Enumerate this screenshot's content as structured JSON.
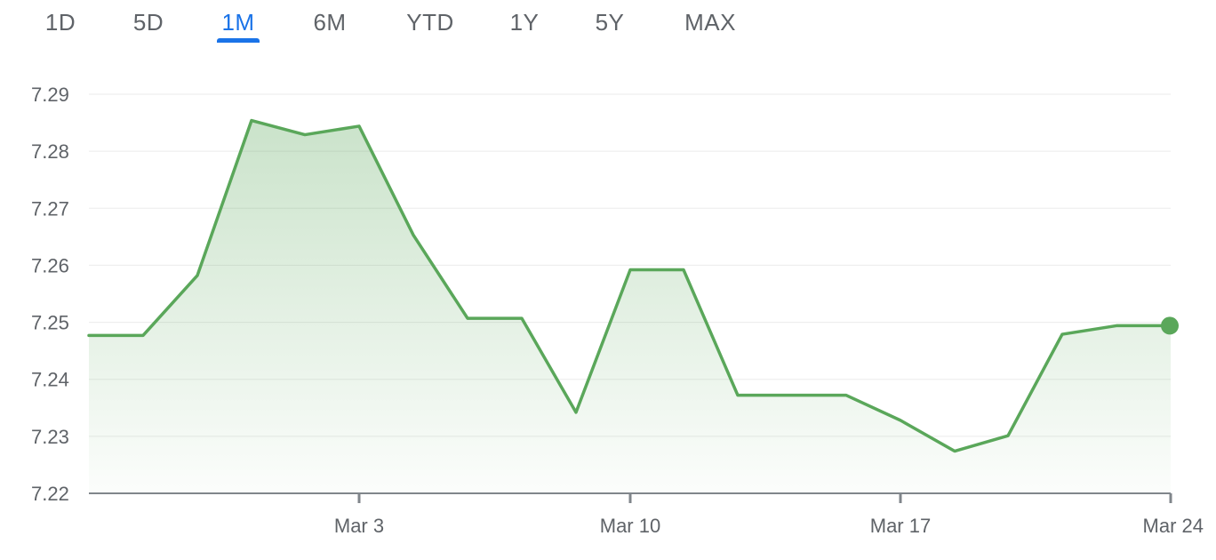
{
  "range_tabs": {
    "items": [
      "1D",
      "5D",
      "1M",
      "6M",
      "YTD",
      "1Y",
      "5Y",
      "MAX"
    ],
    "selected": "1M"
  },
  "colors": {
    "line": "#5aa75a",
    "fill": "#5aa75a",
    "accent": "#1a73e8",
    "axis": "#80868b",
    "grid": "#ebebeb",
    "text": "#5f6368"
  },
  "chart_data": {
    "type": "area",
    "xlabel": "",
    "ylabel": "",
    "ylim": [
      7.22,
      7.29
    ],
    "yticks": [
      "7.29",
      "7.28",
      "7.27",
      "7.26",
      "7.25",
      "7.24",
      "7.23",
      "7.22"
    ],
    "xticks": [
      "Mar 3",
      "Mar 10",
      "Mar 17",
      "Mar 24"
    ],
    "grid": true,
    "series": [
      {
        "x": [
          "Feb 24",
          "Feb 25",
          "Feb 26",
          "Feb 27",
          "Feb 28",
          "Mar 3",
          "Mar 4",
          "Mar 5",
          "Mar 6",
          "Mar 7",
          "Mar 10",
          "Mar 11",
          "Mar 12",
          "Mar 13",
          "Mar 14",
          "Mar 17",
          "Mar 18",
          "Mar 19",
          "Mar 20",
          "Mar 21",
          "Mar 24"
        ],
        "values": [
          7.2477,
          7.2477,
          7.2582,
          7.2854,
          7.2829,
          7.2844,
          7.2653,
          7.2507,
          7.2507,
          7.2342,
          7.2592,
          7.2592,
          7.2372,
          7.2372,
          7.2372,
          7.2328,
          7.2274,
          7.2301,
          7.2479,
          7.2494,
          7.2494
        ]
      }
    ]
  }
}
